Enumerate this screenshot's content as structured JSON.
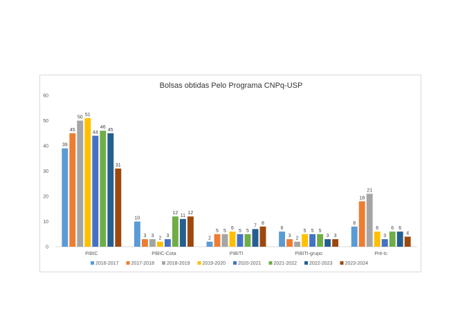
{
  "chart_data": {
    "type": "bar",
    "title": "Bolsas obtidas Pelo Programa CNPq-USP",
    "xlabel": "",
    "ylabel": "",
    "ylim": [
      0,
      60
    ],
    "yticks": [
      0,
      10,
      20,
      30,
      40,
      50,
      60
    ],
    "grid": false,
    "legend_position": "bottom",
    "categories": [
      "PIBIC",
      "PIBIC-Cota",
      "PIBITI",
      "PIBITI-grupo",
      "Pré-Ic"
    ],
    "series": [
      {
        "name": "2016-2017",
        "color": "#5b9bd5",
        "values": [
          39,
          10,
          2,
          6,
          8
        ]
      },
      {
        "name": "2017-2018",
        "color": "#ed7d31",
        "values": [
          45,
          3,
          5,
          3,
          18
        ]
      },
      {
        "name": "2018-2019",
        "color": "#a5a5a5",
        "values": [
          50,
          3,
          5,
          2,
          21
        ]
      },
      {
        "name": "2019-2020",
        "color": "#ffc000",
        "values": [
          51,
          2,
          6,
          5,
          6
        ]
      },
      {
        "name": "2020-2021",
        "color": "#4472c4",
        "values": [
          44,
          3,
          5,
          5,
          3
        ]
      },
      {
        "name": "2021-2022",
        "color": "#70ad47",
        "values": [
          46,
          12,
          5,
          5,
          6
        ]
      },
      {
        "name": "2022-2023",
        "color": "#255e91",
        "values": [
          45,
          11,
          7,
          3,
          6
        ]
      },
      {
        "name": "2023-2024",
        "color": "#9e480e",
        "values": [
          31,
          12,
          8,
          3,
          4
        ]
      }
    ]
  }
}
